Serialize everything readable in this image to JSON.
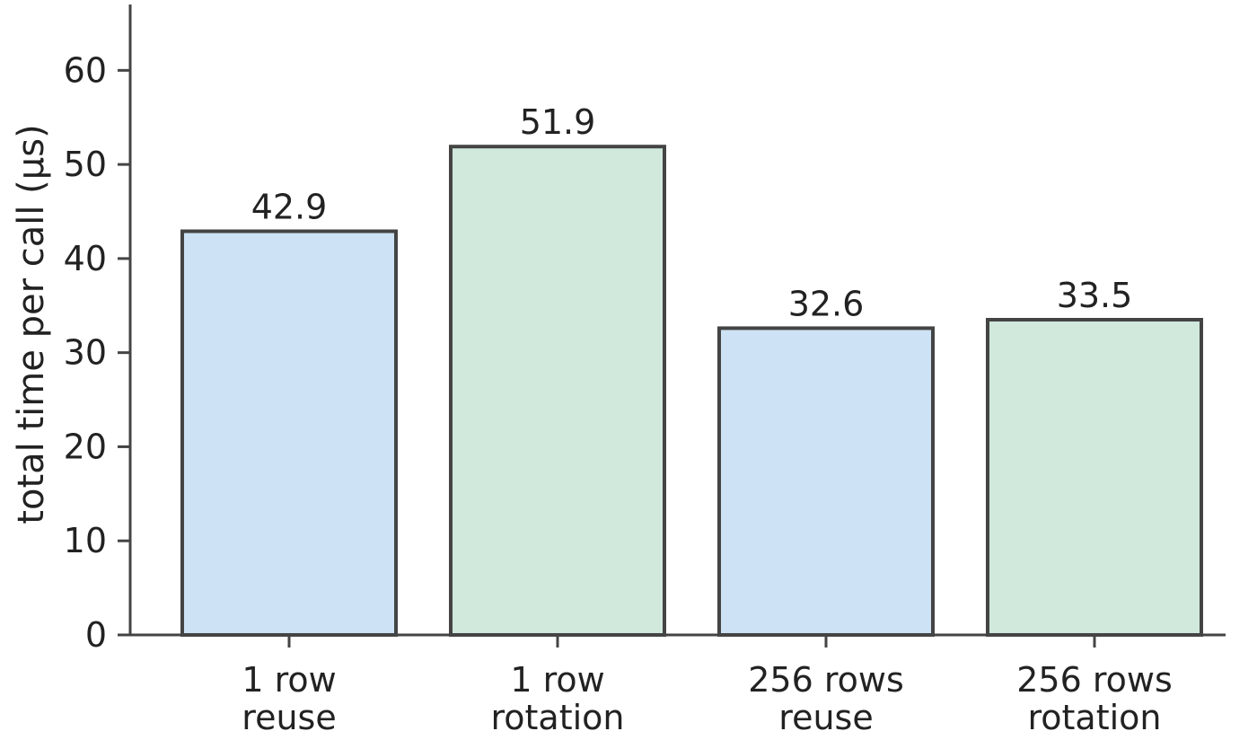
{
  "chart_data": {
    "type": "bar",
    "title": "",
    "xlabel": "",
    "ylabel": "total time per call (µs)",
    "ylim": [
      0,
      67
    ],
    "yticks": [
      0,
      10,
      20,
      30,
      40,
      50,
      60
    ],
    "grid": false,
    "legend": "none",
    "categories": [
      [
        "1 row",
        "reuse"
      ],
      [
        "1 row",
        "rotation"
      ],
      [
        "256 rows",
        "reuse"
      ],
      [
        "256 rows",
        "rotation"
      ]
    ],
    "values": [
      42.9,
      51.9,
      32.6,
      33.5
    ],
    "data_labels": [
      "42.9",
      "51.9",
      "32.6",
      "33.5"
    ],
    "bar_colors": [
      "#cde2f4",
      "#d1e8dc",
      "#cde2f4",
      "#d1e8dc"
    ],
    "bar_edge_color": "#444444",
    "axis_color": "#444444",
    "text_color": "#222222"
  }
}
